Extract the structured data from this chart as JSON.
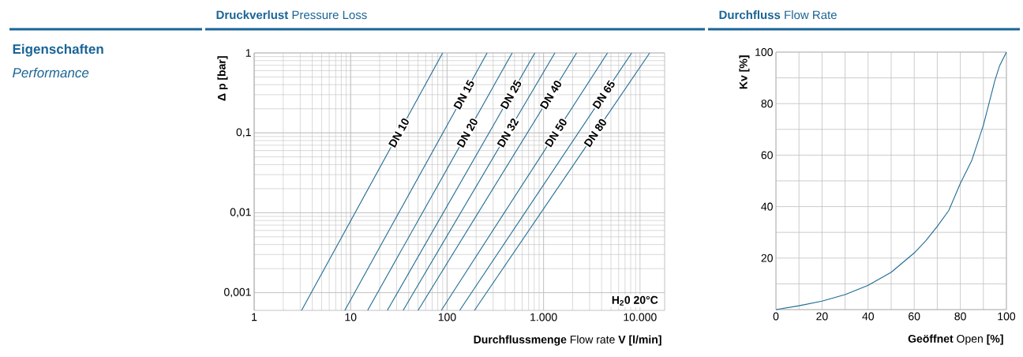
{
  "chart_data": [
    {
      "type": "line",
      "title": "**Druckverlust** Pressure Loss",
      "xlabel": "**Durchflussmenge** Flow rate **V [l/min]**",
      "ylabel": "Δ p [bar]",
      "log": "xy",
      "grid": true,
      "xlim": [
        1,
        18000
      ],
      "ylim": [
        0.0006,
        1
      ],
      "xticks": [
        1,
        10,
        100,
        {
          "value": 1000,
          "label": "1.000"
        },
        {
          "value": 10000,
          "label": "10.000"
        }
      ],
      "yticks": [
        {
          "value": 0.001,
          "label": "0,001"
        },
        {
          "value": 0.01,
          "label": "0,01"
        },
        {
          "value": 0.1,
          "label": "0,1"
        },
        1
      ],
      "annotations": [
        "Eigenschaften",
        "Performance",
        "H$_{2}$0 20°C"
      ],
      "series": [
        {
          "name": "DN 10",
          "color": "#1f6b94",
          "x": [
            3.1,
            90
          ],
          "values": [
            0.0006,
            1
          ]
        },
        {
          "name": "DN 15",
          "color": "#1f6b94",
          "x": [
            8.7,
            260
          ],
          "values": [
            0.0006,
            1
          ]
        },
        {
          "name": "DN 20",
          "color": "#1f6b94",
          "x": [
            15,
            473
          ],
          "values": [
            0.0006,
            1
          ]
        },
        {
          "name": "DN 25",
          "color": "#1f6b94",
          "x": [
            24,
            813
          ],
          "values": [
            0.0006,
            1
          ]
        },
        {
          "name": "DN 32",
          "color": "#1f6b94",
          "x": [
            35,
            1310
          ],
          "values": [
            0.0006,
            1
          ]
        },
        {
          "name": "DN 40",
          "color": "#1f6b94",
          "x": [
            50,
            2200
          ],
          "values": [
            0.0006,
            1
          ]
        },
        {
          "name": "DN 50",
          "color": "#1f6b94",
          "x": [
            87,
            4600
          ],
          "values": [
            0.0006,
            1
          ]
        },
        {
          "name": "DN 65",
          "color": "#1f6b94",
          "x": [
            135,
            8200
          ],
          "values": [
            0.0006,
            1
          ]
        },
        {
          "name": "DN 80",
          "color": "#1f6b94",
          "x": [
            192,
            12600
          ],
          "values": [
            0.0006,
            1
          ]
        }
      ]
    },
    {
      "type": "line",
      "title": "**Durchfluss** Flow Rate",
      "xlabel": "**Geöffnet** Open **[%]**",
      "ylabel": "Kv [%]",
      "grid": true,
      "xlim": [
        0,
        100
      ],
      "ylim": [
        0,
        100
      ],
      "xticks": [
        0,
        {
          "value": 10,
          "label": null
        },
        20,
        {
          "value": 30,
          "label": null
        },
        40,
        {
          "value": 50,
          "label": null
        },
        60,
        {
          "value": 70,
          "label": null
        },
        80,
        {
          "value": 90,
          "label": null
        },
        100
      ],
      "yticks": [
        {
          "value": 0,
          "label": null
        },
        {
          "value": 10,
          "label": null
        },
        20,
        {
          "value": 30,
          "label": null
        },
        40,
        {
          "value": 50,
          "label": null
        },
        60,
        {
          "value": 70,
          "label": null
        },
        80,
        {
          "value": 90,
          "label": null
        },
        100
      ],
      "x": [
        0,
        10,
        20,
        30,
        40,
        50,
        60,
        65,
        70,
        75,
        80,
        85,
        90,
        95,
        97,
        100
      ],
      "series": [
        {
          "color": "#1f6b94",
          "values": [
            0,
            1.5,
            3.3,
            5.8,
            9.4,
            14.5,
            22,
            26.7,
            32.3,
            38.5,
            49,
            58,
            71.6,
            89,
            94.6,
            100
          ]
        }
      ]
    }
  ]
}
